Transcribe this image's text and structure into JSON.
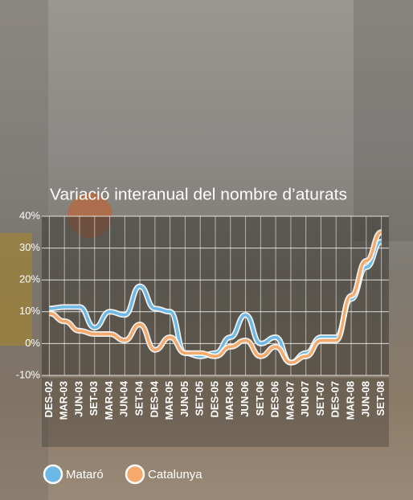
{
  "chart_data": {
    "type": "line",
    "title": "Variació interanual del nombre d’aturats",
    "categories": [
      "DES-02",
      "MAR-03",
      "JUN-03",
      "SET-03",
      "MAR-04",
      "JUN-04",
      "SET-04",
      "DES-04",
      "MAR-05",
      "JUN-05",
      "SET-05",
      "DES-05",
      "MAR-06",
      "JUN-06",
      "SET-06",
      "DES-06",
      "MAR-07",
      "JUN-07",
      "SET-07",
      "DES-07",
      "MAR-08",
      "JUN-08",
      "SET-08"
    ],
    "series": [
      {
        "name": "Mataró",
        "color": "#6cb8e6",
        "values": [
          11,
          11.5,
          11.5,
          5,
          10,
          9,
          18,
          11,
          10,
          -3,
          -4,
          -3,
          2,
          9,
          0,
          2,
          -6,
          -3,
          2,
          2,
          14,
          24,
          32
        ]
      },
      {
        "name": "Catalunya",
        "color": "#f5a96b",
        "values": [
          9.5,
          7,
          4,
          3,
          3,
          1,
          6,
          -2,
          2,
          -3,
          -3,
          -4,
          -1,
          1,
          -4,
          -1,
          -6,
          -4,
          1,
          1,
          15,
          26,
          35
        ]
      }
    ],
    "ylim": [
      -10,
      40
    ],
    "yticks": [
      {
        "value": -10,
        "label": "-10%"
      },
      {
        "value": 0,
        "label": "0%"
      },
      {
        "value": 10,
        "label": "10%"
      },
      {
        "value": 20,
        "label": "20%"
      },
      {
        "value": 30,
        "label": "30%"
      },
      {
        "value": 40,
        "label": "40%"
      }
    ],
    "grid": true
  }
}
